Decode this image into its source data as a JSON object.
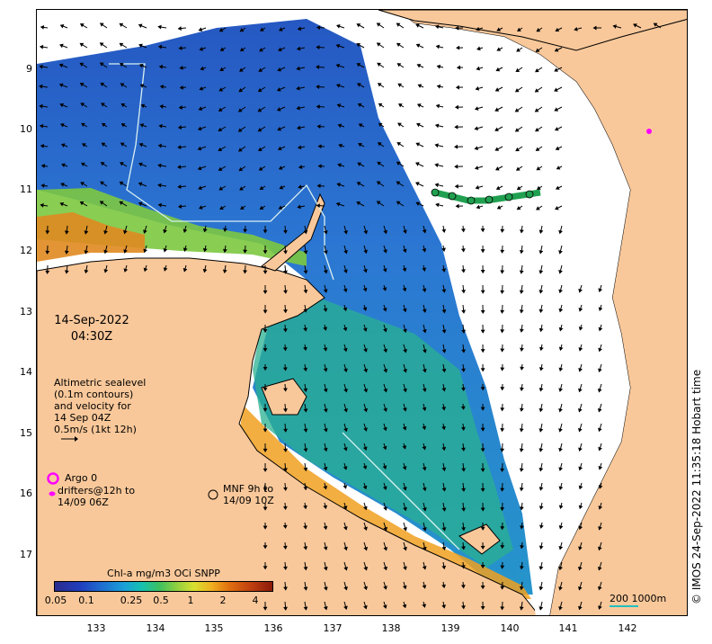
{
  "map": {
    "y_ticks": [
      "9",
      "10",
      "11",
      "12",
      "13",
      "14",
      "15",
      "16",
      "17"
    ],
    "x_ticks": [
      "133",
      "134",
      "135",
      "136",
      "137",
      "138",
      "139",
      "140",
      "141",
      "142"
    ],
    "date": "14-Sep-2022",
    "time": "04:30Z",
    "sealevel_text": [
      "Altimetric sealevel",
      "(0.1m contours)",
      "and velocity for",
      "14 Sep 04Z",
      "0.5m/s (1kt 12h)"
    ],
    "argo_label": "Argo 0",
    "drifters_text": [
      "drifters@12h to",
      "14/09 06Z"
    ],
    "mnf_text": [
      "MNF 9h to",
      "14/09 10Z"
    ],
    "colorbar_title": "Chl-a mg/m3 OCi SNPP",
    "colorbar_ticks": [
      "0.05",
      "0.1",
      "0.25",
      "0.5",
      "1",
      "2",
      "4"
    ],
    "scale_label": "200  1000m",
    "credit": "© IMOS 24-Sep-2022 11:35:18 Hobart time",
    "colors": {
      "land": "#f9c89a",
      "argo": "#ff00ff",
      "mnf_track": "#20a050",
      "contour": "#d8f0f0",
      "scale": "#20c0c0"
    }
  }
}
